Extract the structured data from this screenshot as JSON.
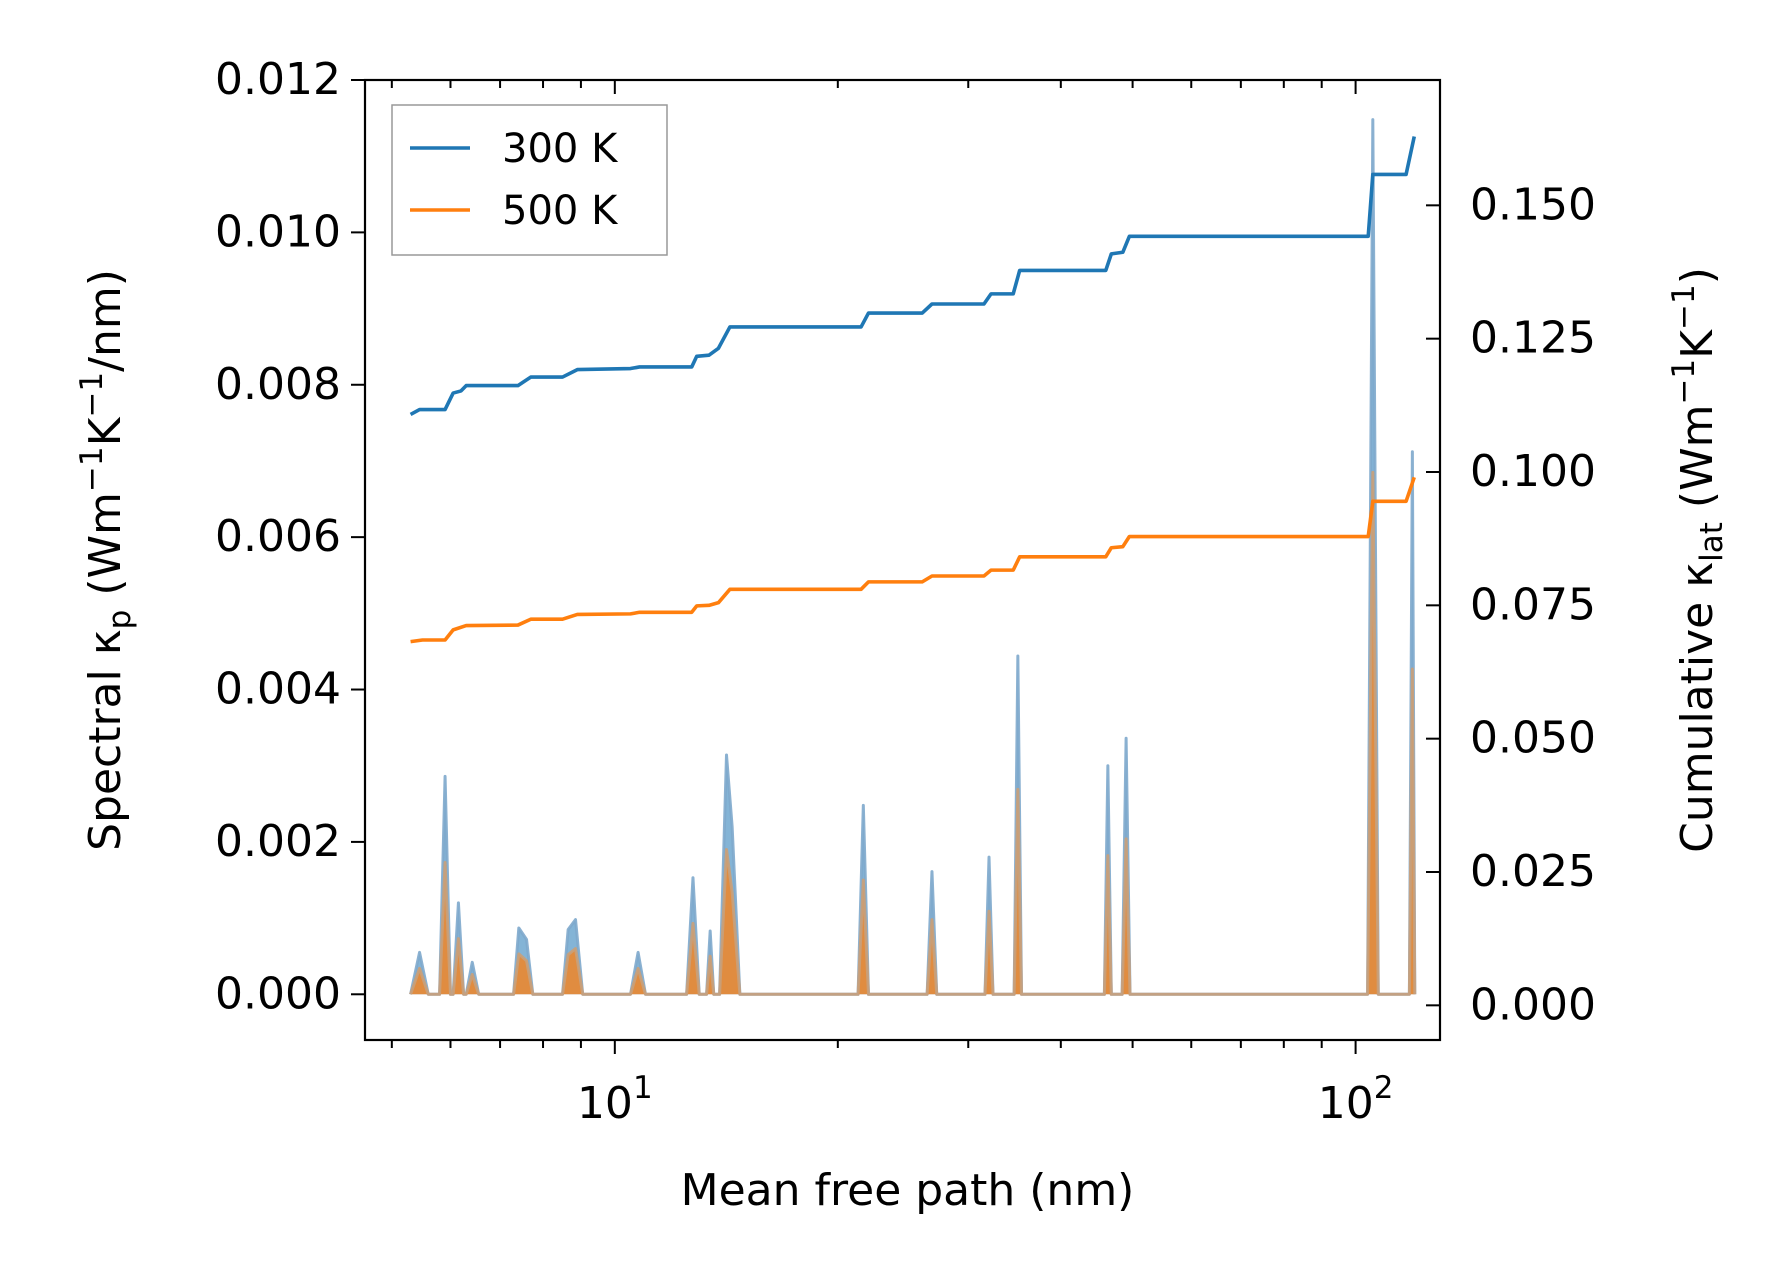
{
  "chart_data": {
    "type": "line",
    "xscale": "log",
    "xlabel": "Mean free path (nm)",
    "ylabel_left": {
      "prefix": "Spectral κ",
      "sub": "p",
      "unit_a": " (Wm",
      "sup_a": "−1",
      "unit_b": "K",
      "sup_b": "−1",
      "unit_c": "/nm)"
    },
    "ylabel_right": {
      "prefix": "Cumulative κ",
      "sub": "lat",
      "unit_a": " (Wm",
      "sup_a": "−1",
      "unit_b": "K",
      "sup_b": "−1",
      "unit_c": ")"
    },
    "xlim": [
      4.6,
      130
    ],
    "ylim_left": [
      -0.0006,
      0.012
    ],
    "ylim_right": [
      -0.0065,
      0.1735
    ],
    "x_tick_labels": [
      {
        "value": 10,
        "base": "10",
        "exp": "1"
      },
      {
        "value": 100,
        "base": "10",
        "exp": "2"
      }
    ],
    "y_left_ticks": [
      "0.000",
      "0.002",
      "0.004",
      "0.006",
      "0.008",
      "0.010",
      "0.012"
    ],
    "y_right_ticks": [
      "0.000",
      "0.025",
      "0.050",
      "0.075",
      "0.100",
      "0.125",
      "0.150"
    ],
    "legend": {
      "location": "upper-left",
      "entries": [
        {
          "label": "300 K",
          "color": "#1f77b4"
        },
        {
          "label": "500 K",
          "color": "#ff7f0e"
        }
      ]
    },
    "cumulative_series": [
      {
        "name": "300 K",
        "color": "#1f77b4",
        "points": [
          [
            5.3,
            0.1108
          ],
          [
            5.45,
            0.1117
          ],
          [
            5.9,
            0.1117
          ],
          [
            6.05,
            0.1148
          ],
          [
            6.2,
            0.1152
          ],
          [
            6.3,
            0.1162
          ],
          [
            7.4,
            0.1162
          ],
          [
            7.7,
            0.1178
          ],
          [
            8.5,
            0.1178
          ],
          [
            8.9,
            0.1192
          ],
          [
            10.5,
            0.1194
          ],
          [
            10.8,
            0.1197
          ],
          [
            12.7,
            0.1197
          ],
          [
            12.9,
            0.1217
          ],
          [
            13.4,
            0.1219
          ],
          [
            13.8,
            0.1232
          ],
          [
            14.3,
            0.1272
          ],
          [
            21.5,
            0.1272
          ],
          [
            22.0,
            0.1298
          ],
          [
            26.0,
            0.1298
          ],
          [
            26.8,
            0.1315
          ],
          [
            31.5,
            0.1315
          ],
          [
            32.2,
            0.1334
          ],
          [
            34.5,
            0.1334
          ],
          [
            35.2,
            0.1378
          ],
          [
            46.0,
            0.1378
          ],
          [
            46.8,
            0.1409
          ],
          [
            48.5,
            0.1412
          ],
          [
            49.5,
            0.1442
          ],
          [
            104.0,
            0.1442
          ],
          [
            105.5,
            0.1558
          ],
          [
            117.0,
            0.1558
          ],
          [
            120.0,
            0.1629
          ]
        ]
      },
      {
        "name": "500 K",
        "color": "#ff7f0e",
        "points": [
          [
            5.3,
            0.0682
          ],
          [
            5.5,
            0.0685
          ],
          [
            5.9,
            0.0685
          ],
          [
            6.05,
            0.0704
          ],
          [
            6.3,
            0.0712
          ],
          [
            7.4,
            0.0713
          ],
          [
            7.7,
            0.0724
          ],
          [
            8.5,
            0.0724
          ],
          [
            8.9,
            0.0733
          ],
          [
            10.5,
            0.0734
          ],
          [
            10.8,
            0.0737
          ],
          [
            12.7,
            0.0737
          ],
          [
            12.9,
            0.0749
          ],
          [
            13.4,
            0.075
          ],
          [
            13.8,
            0.0755
          ],
          [
            14.3,
            0.078
          ],
          [
            21.5,
            0.078
          ],
          [
            22.0,
            0.0794
          ],
          [
            26.0,
            0.0794
          ],
          [
            26.8,
            0.0805
          ],
          [
            31.5,
            0.0805
          ],
          [
            32.2,
            0.0816
          ],
          [
            34.5,
            0.0816
          ],
          [
            35.2,
            0.0841
          ],
          [
            46.0,
            0.0841
          ],
          [
            46.8,
            0.0858
          ],
          [
            48.5,
            0.086
          ],
          [
            49.5,
            0.0879
          ],
          [
            104.0,
            0.0879
          ],
          [
            105.5,
            0.0945
          ],
          [
            117.0,
            0.0945
          ],
          [
            120.0,
            0.099
          ]
        ]
      }
    ],
    "spectral_series": [
      {
        "name": "300 K",
        "color": "#1f77b4",
        "points": [
          [
            5.3,
            0
          ],
          [
            5.45,
            0.00055
          ],
          [
            5.6,
            0
          ],
          [
            5.8,
            0
          ],
          [
            5.9,
            0.00286
          ],
          [
            6.0,
            0
          ],
          [
            6.05,
            0
          ],
          [
            6.15,
            0.0012
          ],
          [
            6.25,
            0
          ],
          [
            6.3,
            0
          ],
          [
            6.42,
            0.00042
          ],
          [
            6.55,
            0
          ],
          [
            7.3,
            0
          ],
          [
            7.42,
            0.00087
          ],
          [
            7.6,
            0.00072
          ],
          [
            7.75,
            0
          ],
          [
            8.5,
            0
          ],
          [
            8.65,
            0.00085
          ],
          [
            8.85,
            0.00098
          ],
          [
            9.05,
            0
          ],
          [
            10.5,
            0
          ],
          [
            10.75,
            0.00055
          ],
          [
            11.0,
            0
          ],
          [
            12.5,
            0
          ],
          [
            12.75,
            0.00153
          ],
          [
            13.0,
            0
          ],
          [
            13.3,
            0
          ],
          [
            13.45,
            0.00083
          ],
          [
            13.6,
            0
          ],
          [
            13.85,
            0
          ],
          [
            14.15,
            0.00314
          ],
          [
            14.4,
            0.0022
          ],
          [
            14.75,
            0
          ],
          [
            21.3,
            0
          ],
          [
            21.65,
            0.00248
          ],
          [
            22.0,
            0
          ],
          [
            26.4,
            0
          ],
          [
            26.8,
            0.00161
          ],
          [
            27.2,
            0
          ],
          [
            31.6,
            0
          ],
          [
            32.0,
            0.0018
          ],
          [
            32.4,
            0
          ],
          [
            34.6,
            0
          ],
          [
            35.0,
            0.00444
          ],
          [
            35.4,
            0
          ],
          [
            45.8,
            0
          ],
          [
            46.3,
            0.003
          ],
          [
            46.8,
            0
          ],
          [
            48.4,
            0
          ],
          [
            49.0,
            0.00336
          ],
          [
            49.6,
            0
          ],
          [
            103.8,
            0
          ],
          [
            105.5,
            0.01148
          ],
          [
            107.3,
            0
          ],
          [
            118.2,
            0
          ],
          [
            119.3,
            0.00712
          ],
          [
            120.2,
            0
          ]
        ]
      },
      {
        "name": "500 K",
        "color": "#ff7f0e",
        "points": [
          [
            5.3,
            0
          ],
          [
            5.45,
            0.00034
          ],
          [
            5.6,
            0
          ],
          [
            5.8,
            0
          ],
          [
            5.9,
            0.00173
          ],
          [
            6.0,
            0
          ],
          [
            6.05,
            0
          ],
          [
            6.15,
            0.00073
          ],
          [
            6.25,
            0
          ],
          [
            6.3,
            0
          ],
          [
            6.42,
            0.00026
          ],
          [
            6.55,
            0
          ],
          [
            7.3,
            0
          ],
          [
            7.42,
            0.00053
          ],
          [
            7.6,
            0.00044
          ],
          [
            7.75,
            0
          ],
          [
            8.5,
            0
          ],
          [
            8.65,
            0.00052
          ],
          [
            8.85,
            0.0006
          ],
          [
            9.05,
            0
          ],
          [
            10.5,
            0
          ],
          [
            10.75,
            0.00034
          ],
          [
            11.0,
            0
          ],
          [
            12.5,
            0
          ],
          [
            12.75,
            0.00093
          ],
          [
            13.0,
            0
          ],
          [
            13.3,
            0
          ],
          [
            13.45,
            0.0005
          ],
          [
            13.6,
            0
          ],
          [
            13.85,
            0
          ],
          [
            14.15,
            0.0019
          ],
          [
            14.4,
            0.00134
          ],
          [
            14.75,
            0
          ],
          [
            21.3,
            0
          ],
          [
            21.65,
            0.0015
          ],
          [
            22.0,
            0
          ],
          [
            26.4,
            0
          ],
          [
            26.8,
            0.00098
          ],
          [
            27.2,
            0
          ],
          [
            31.6,
            0
          ],
          [
            32.0,
            0.00109
          ],
          [
            32.4,
            0
          ],
          [
            34.6,
            0
          ],
          [
            35.0,
            0.00269
          ],
          [
            35.4,
            0
          ],
          [
            45.8,
            0
          ],
          [
            46.3,
            0.00182
          ],
          [
            46.8,
            0
          ],
          [
            48.4,
            0
          ],
          [
            49.0,
            0.00204
          ],
          [
            49.6,
            0
          ],
          [
            103.8,
            0
          ],
          [
            105.5,
            0.00685
          ],
          [
            107.3,
            0
          ],
          [
            118.2,
            0
          ],
          [
            119.3,
            0.00427
          ],
          [
            120.2,
            0
          ]
        ]
      }
    ]
  }
}
